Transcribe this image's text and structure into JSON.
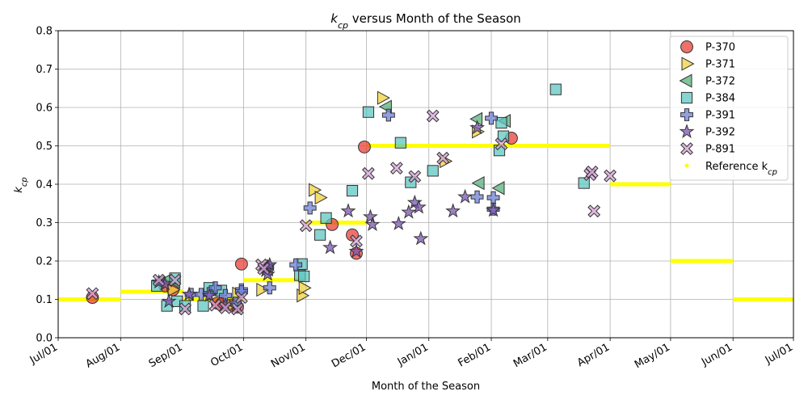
{
  "chart_data": {
    "type": "scatter",
    "title": {
      "base": "k",
      "sub": "cp",
      "rest": " versus Month of the Season"
    },
    "xlabel": "Month of the Season",
    "ylabel": {
      "base": "k",
      "sub": "cp"
    },
    "ylim": [
      0,
      0.8
    ],
    "yticks": [
      "0.0",
      "0.1",
      "0.2",
      "0.3",
      "0.4",
      "0.5",
      "0.6",
      "0.7",
      "0.8"
    ],
    "xlim": [
      "2020-07-01",
      "2021-07-01"
    ],
    "xticks": [
      {
        "date": "2020-07-01",
        "label": "Jul/01"
      },
      {
        "date": "2020-08-01",
        "label": "Aug/01"
      },
      {
        "date": "2020-09-01",
        "label": "Sep/01"
      },
      {
        "date": "2020-10-01",
        "label": "Oct/01"
      },
      {
        "date": "2020-11-01",
        "label": "Nov/01"
      },
      {
        "date": "2020-12-01",
        "label": "Dec/01"
      },
      {
        "date": "2021-01-01",
        "label": "Jan/01"
      },
      {
        "date": "2021-02-01",
        "label": "Feb/01"
      },
      {
        "date": "2021-03-01",
        "label": "Mar/01"
      },
      {
        "date": "2021-04-01",
        "label": "Apr/01"
      },
      {
        "date": "2021-05-01",
        "label": "May/01"
      },
      {
        "date": "2021-06-01",
        "label": "Jun/01"
      },
      {
        "date": "2021-07-01",
        "label": "Jul/01"
      }
    ],
    "grid": true,
    "legend_position": "top-right",
    "series": [
      {
        "name": "P-370",
        "marker": "circle",
        "color": "#e8403a",
        "points": [
          [
            "2020-07-18",
            0.105
          ],
          [
            "2020-08-23",
            0.135
          ],
          [
            "2020-08-27",
            0.125
          ],
          [
            "2020-09-18",
            0.09
          ],
          [
            "2020-09-20",
            0.088
          ],
          [
            "2020-09-25",
            0.085
          ],
          [
            "2020-09-28",
            0.08
          ],
          [
            "2020-09-30",
            0.192
          ],
          [
            "2020-11-14",
            0.295
          ],
          [
            "2020-11-24",
            0.268
          ],
          [
            "2020-11-26",
            0.22
          ],
          [
            "2020-11-30",
            0.497
          ],
          [
            "2021-02-11",
            0.52
          ]
        ]
      },
      {
        "name": "P-371",
        "marker": "triangle-right",
        "color": "#f2d23c",
        "points": [
          [
            "2020-08-27",
            0.125
          ],
          [
            "2020-09-25",
            0.085
          ],
          [
            "2020-09-28",
            0.115
          ],
          [
            "2020-10-10",
            0.125
          ],
          [
            "2020-10-30",
            0.11
          ],
          [
            "2020-10-31",
            0.13
          ],
          [
            "2020-11-05",
            0.385
          ],
          [
            "2020-11-08",
            0.365
          ],
          [
            "2020-12-09",
            0.625
          ],
          [
            "2021-01-09",
            0.46
          ],
          [
            "2021-01-25",
            0.537
          ]
        ]
      },
      {
        "name": "P-372",
        "marker": "triangle-left",
        "color": "#58b07a",
        "points": [
          [
            "2020-08-20",
            0.145
          ],
          [
            "2020-08-24",
            0.15
          ],
          [
            "2020-08-28",
            0.145
          ],
          [
            "2020-09-27",
            0.085
          ],
          [
            "2020-10-13",
            0.178
          ],
          [
            "2020-12-11",
            0.602
          ],
          [
            "2021-01-25",
            0.57
          ],
          [
            "2021-01-26",
            0.403
          ],
          [
            "2021-02-05",
            0.39
          ],
          [
            "2021-02-08",
            0.565
          ]
        ]
      },
      {
        "name": "P-384",
        "marker": "square",
        "color": "#5fc6c0",
        "points": [
          [
            "2020-08-19",
            0.135
          ],
          [
            "2020-08-24",
            0.083
          ],
          [
            "2020-08-28",
            0.155
          ],
          [
            "2020-08-29",
            0.095
          ],
          [
            "2020-09-02",
            0.083
          ],
          [
            "2020-09-11",
            0.083
          ],
          [
            "2020-09-14",
            0.13
          ],
          [
            "2020-09-20",
            0.123
          ],
          [
            "2020-10-29",
            0.163
          ],
          [
            "2020-10-30",
            0.192
          ],
          [
            "2020-10-31",
            0.16
          ],
          [
            "2020-11-08",
            0.268
          ],
          [
            "2020-11-11",
            0.312
          ],
          [
            "2020-11-24",
            0.383
          ],
          [
            "2020-12-02",
            0.588
          ],
          [
            "2020-12-18",
            0.508
          ],
          [
            "2020-12-23",
            0.405
          ],
          [
            "2021-01-03",
            0.435
          ],
          [
            "2021-02-05",
            0.488
          ],
          [
            "2021-02-06",
            0.56
          ],
          [
            "2021-02-07",
            0.525
          ],
          [
            "2021-03-05",
            0.647
          ],
          [
            "2021-03-19",
            0.403
          ]
        ]
      },
      {
        "name": "P-391",
        "marker": "plus",
        "color": "#6e7fd6",
        "points": [
          [
            "2020-09-05",
            0.113
          ],
          [
            "2020-09-10",
            0.113
          ],
          [
            "2020-09-14",
            0.115
          ],
          [
            "2020-09-17",
            0.13
          ],
          [
            "2020-09-22",
            0.11
          ],
          [
            "2020-09-27",
            0.09
          ],
          [
            "2020-09-30",
            0.125
          ],
          [
            "2020-09-30",
            0.12
          ],
          [
            "2020-10-13",
            0.185
          ],
          [
            "2020-10-14",
            0.13
          ],
          [
            "2020-10-27",
            0.19
          ],
          [
            "2020-11-03",
            0.338
          ],
          [
            "2020-12-12",
            0.58
          ],
          [
            "2021-01-25",
            0.367
          ],
          [
            "2021-02-01",
            0.572
          ],
          [
            "2021-02-02",
            0.365
          ],
          [
            "2021-02-02",
            0.335
          ]
        ]
      },
      {
        "name": "P-392",
        "marker": "star",
        "color": "#7b55b0",
        "points": [
          [
            "2020-08-20",
            0.145
          ],
          [
            "2020-08-23",
            0.14
          ],
          [
            "2020-08-25",
            0.095
          ],
          [
            "2020-09-04",
            0.113
          ],
          [
            "2020-09-14",
            0.11
          ],
          [
            "2020-09-22",
            0.085
          ],
          [
            "2020-10-12",
            0.175
          ],
          [
            "2020-10-13",
            0.165
          ],
          [
            "2020-10-13",
            0.185
          ],
          [
            "2020-10-14",
            0.19
          ],
          [
            "2020-11-13",
            0.235
          ],
          [
            "2020-11-22",
            0.33
          ],
          [
            "2020-11-26",
            0.225
          ],
          [
            "2020-12-03",
            0.315
          ],
          [
            "2020-12-04",
            0.295
          ],
          [
            "2020-12-17",
            0.297
          ],
          [
            "2020-12-22",
            0.327
          ],
          [
            "2020-12-25",
            0.352
          ],
          [
            "2020-12-27",
            0.34
          ],
          [
            "2020-12-28",
            0.258
          ],
          [
            "2021-01-13",
            0.33
          ],
          [
            "2021-01-19",
            0.367
          ],
          [
            "2021-01-25",
            0.547
          ],
          [
            "2021-02-02",
            0.332
          ]
        ]
      },
      {
        "name": "P-891",
        "marker": "x",
        "color": "#d4a0d6",
        "points": [
          [
            "2020-07-18",
            0.115
          ],
          [
            "2020-08-20",
            0.15
          ],
          [
            "2020-08-28",
            0.15
          ],
          [
            "2020-09-02",
            0.075
          ],
          [
            "2020-09-17",
            0.085
          ],
          [
            "2020-09-22",
            0.078
          ],
          [
            "2020-09-28",
            0.075
          ],
          [
            "2020-09-30",
            0.105
          ],
          [
            "2020-10-10",
            0.19
          ],
          [
            "2020-10-11",
            0.18
          ],
          [
            "2020-11-01",
            0.292
          ],
          [
            "2020-11-26",
            0.252
          ],
          [
            "2020-12-02",
            0.428
          ],
          [
            "2020-12-16",
            0.442
          ],
          [
            "2020-12-25",
            0.42
          ],
          [
            "2021-01-03",
            0.578
          ],
          [
            "2021-01-08",
            0.468
          ],
          [
            "2021-02-06",
            0.505
          ],
          [
            "2021-03-22",
            0.425
          ],
          [
            "2021-03-23",
            0.432
          ],
          [
            "2021-03-24",
            0.33
          ],
          [
            "2021-04-01",
            0.422
          ]
        ]
      }
    ],
    "reference": {
      "name": "Reference k_cp",
      "legend": {
        "base": "Reference k",
        "sub": "cp"
      },
      "color": "#ffff00",
      "segments": [
        {
          "start": "2020-07-01",
          "end": "2020-08-01",
          "value": 0.1
        },
        {
          "start": "2020-08-01",
          "end": "2020-09-01",
          "value": 0.12
        },
        {
          "start": "2020-09-01",
          "end": "2020-10-01",
          "value": 0.1
        },
        {
          "start": "2020-10-01",
          "end": "2020-11-01",
          "value": 0.15
        },
        {
          "start": "2020-11-01",
          "end": "2020-12-01",
          "value": 0.3
        },
        {
          "start": "2020-12-01",
          "end": "2021-04-01",
          "value": 0.5
        },
        {
          "start": "2021-04-01",
          "end": "2021-05-01",
          "value": 0.4
        },
        {
          "start": "2021-05-01",
          "end": "2021-06-01",
          "value": 0.2
        },
        {
          "start": "2021-06-01",
          "end": "2021-07-01",
          "value": 0.1
        }
      ]
    }
  }
}
